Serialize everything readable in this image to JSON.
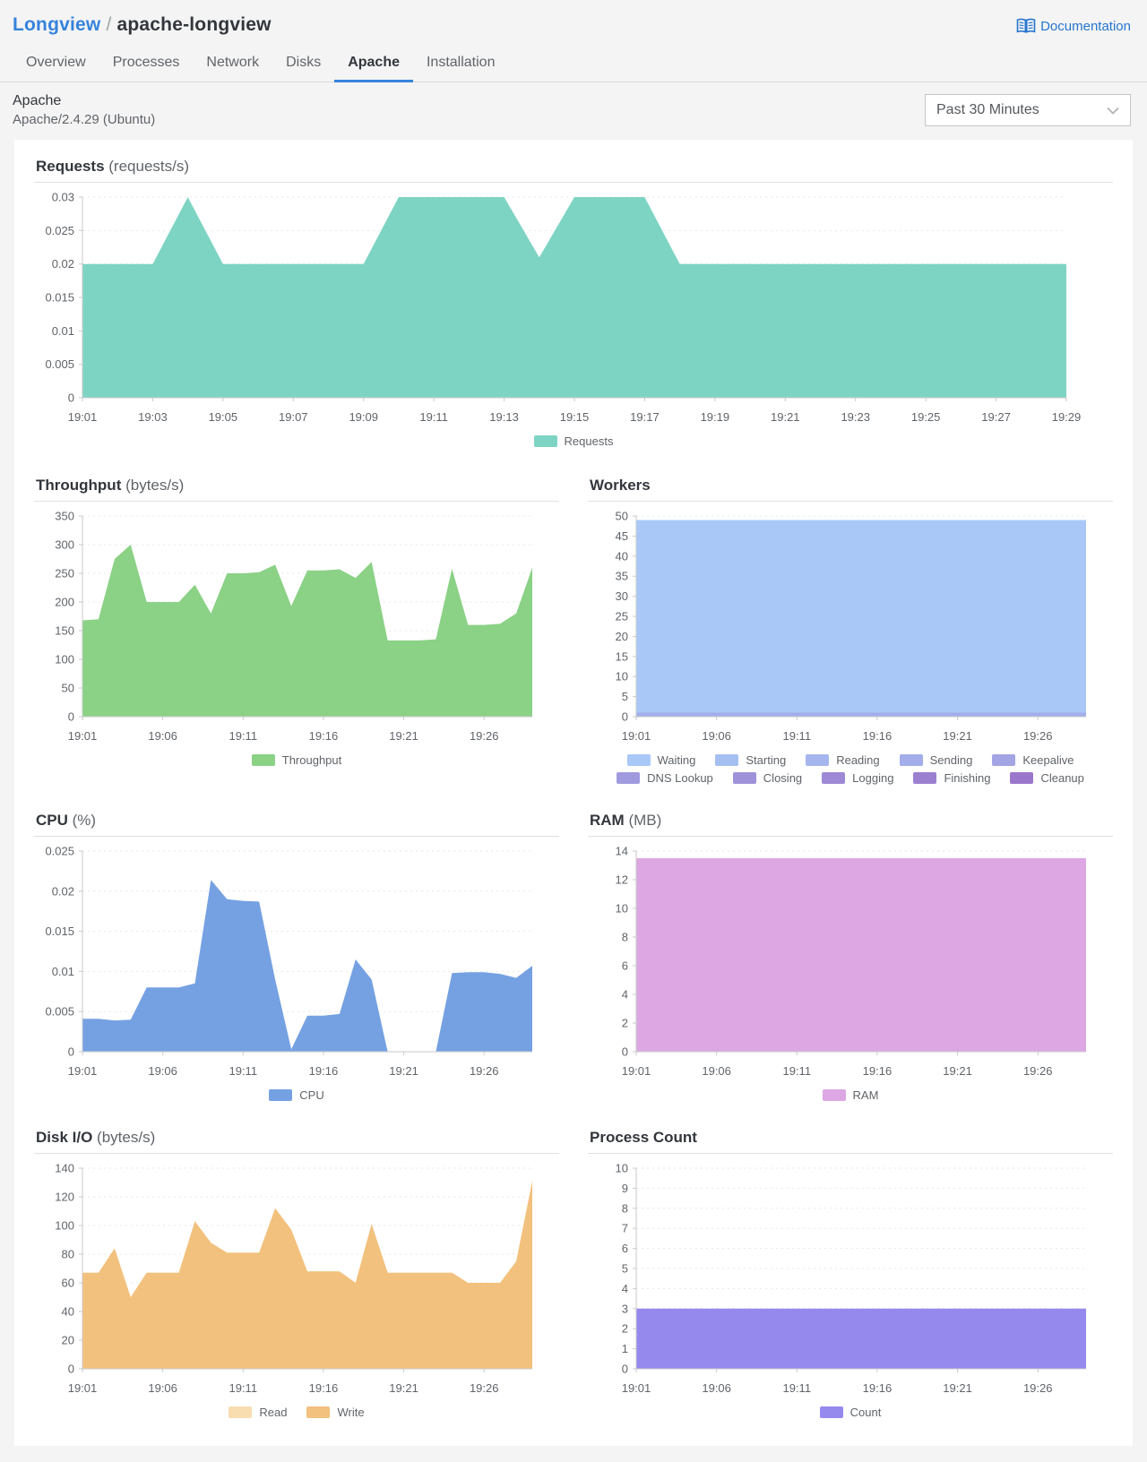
{
  "header": {
    "breadcrumb": {
      "parent": "Longview",
      "separator": "/",
      "current": "apache-longview"
    },
    "documentation": {
      "label": "Documentation"
    },
    "tabs": [
      {
        "label": "Overview",
        "active": false
      },
      {
        "label": "Processes",
        "active": false
      },
      {
        "label": "Network",
        "active": false
      },
      {
        "label": "Disks",
        "active": false
      },
      {
        "label": "Apache",
        "active": true
      },
      {
        "label": "Installation",
        "active": false
      }
    ]
  },
  "subheader": {
    "title": "Apache",
    "subtitle": "Apache/2.4.29 (Ubuntu)",
    "time_range": {
      "value": "Past 30 Minutes"
    }
  },
  "colors": {
    "accent_blue": "#3683dc",
    "requests_teal": "#7ed4c3",
    "throughput_green": "#8bd186",
    "cpu_blue": "#75a1e2",
    "ram_orchid": "#dca7e2",
    "disk_orange": "#f2c17d",
    "process_purple": "#9589ee"
  },
  "chart_data": [
    {
      "type": "area",
      "layout": "full",
      "title": "Requests",
      "unit": "(requests/s)",
      "x_start": "19:01",
      "x_end": "19:29",
      "ylim": [
        0,
        0.03
      ],
      "yticks": [
        0,
        0.005,
        0.01,
        0.015,
        0.02,
        0.025,
        0.03
      ],
      "xticks": [
        {
          "m": 1,
          "label": "19:01"
        },
        {
          "m": 3,
          "label": "19:03"
        },
        {
          "m": 5,
          "label": "19:05"
        },
        {
          "m": 7,
          "label": "19:07"
        },
        {
          "m": 9,
          "label": "19:09"
        },
        {
          "m": 11,
          "label": "19:11"
        },
        {
          "m": 13,
          "label": "19:13"
        },
        {
          "m": 15,
          "label": "19:15"
        },
        {
          "m": 17,
          "label": "19:17"
        },
        {
          "m": 19,
          "label": "19:19"
        },
        {
          "m": 21,
          "label": "19:21"
        },
        {
          "m": 23,
          "label": "19:23"
        },
        {
          "m": 25,
          "label": "19:25"
        },
        {
          "m": 27,
          "label": "19:27"
        },
        {
          "m": 29,
          "label": "19:29"
        }
      ],
      "series": [
        {
          "name": "Requests",
          "color": "#7ed4c3",
          "values": [
            0.02,
            0.02,
            0.02,
            0.03,
            0.02,
            0.02,
            0.02,
            0.02,
            0.02,
            0.03,
            0.03,
            0.03,
            0.03,
            0.021,
            0.03,
            0.03,
            0.03,
            0.02,
            0.02,
            0.02,
            0.02,
            0.02,
            0.02,
            0.02,
            0.02,
            0.02,
            0.02,
            0.02,
            0.02
          ]
        }
      ],
      "legend": [
        {
          "label": "Requests",
          "color": "#7ed4c3"
        }
      ]
    },
    {
      "type": "area",
      "layout": "half",
      "title": "Throughput",
      "unit": "(bytes/s)",
      "x_start": "19:01",
      "x_end": "19:29",
      "ylim": [
        0,
        350
      ],
      "yticks": [
        0,
        50,
        100,
        150,
        200,
        250,
        300,
        350
      ],
      "xticks": [
        {
          "m": 1,
          "label": "19:01"
        },
        {
          "m": 6,
          "label": "19:06"
        },
        {
          "m": 11,
          "label": "19:11"
        },
        {
          "m": 16,
          "label": "19:16"
        },
        {
          "m": 21,
          "label": "19:21"
        },
        {
          "m": 26,
          "label": "19:26"
        }
      ],
      "series": [
        {
          "name": "Throughput",
          "color": "#8bd186",
          "values": [
            168,
            170,
            275,
            300,
            200,
            200,
            200,
            230,
            180,
            250,
            250,
            252,
            265,
            193,
            255,
            255,
            257,
            242,
            270,
            133,
            133,
            133,
            135,
            258,
            160,
            160,
            162,
            180,
            260
          ]
        }
      ],
      "legend": [
        {
          "label": "Throughput",
          "color": "#8bd186"
        }
      ]
    },
    {
      "type": "area",
      "layout": "half",
      "title": "Workers",
      "x_start": "19:01",
      "x_end": "19:29",
      "ylim": [
        0,
        50
      ],
      "yticks": [
        0,
        5,
        10,
        15,
        20,
        25,
        30,
        35,
        40,
        45,
        50
      ],
      "xticks": [
        {
          "m": 1,
          "label": "19:01"
        },
        {
          "m": 6,
          "label": "19:06"
        },
        {
          "m": 11,
          "label": "19:11"
        },
        {
          "m": 16,
          "label": "19:16"
        },
        {
          "m": 21,
          "label": "19:21"
        },
        {
          "m": 26,
          "label": "19:26"
        }
      ],
      "series": [
        {
          "name": "Waiting",
          "color": "#a9c8f8",
          "values": [
            49,
            49,
            49,
            49,
            49,
            49,
            49,
            49,
            49,
            49,
            49,
            49,
            49,
            49,
            49,
            49,
            49,
            49,
            49,
            49,
            49,
            49,
            49,
            49,
            49,
            49,
            49,
            49,
            49
          ]
        },
        {
          "name": "Sending",
          "color": "#a3aeea",
          "values": [
            1,
            1,
            1,
            1,
            1,
            1,
            1,
            1,
            1,
            1,
            1,
            1,
            1,
            1,
            1,
            1,
            1,
            1,
            1,
            1,
            1,
            1,
            1,
            1,
            1,
            1,
            1,
            1,
            1
          ]
        }
      ],
      "legend": [
        {
          "label": "Waiting",
          "color": "#a8c8f8"
        },
        {
          "label": "Starting",
          "color": "#a6bff3"
        },
        {
          "label": "Reading",
          "color": "#a5b6ee"
        },
        {
          "label": "Sending",
          "color": "#a3ade9"
        },
        {
          "label": "Keepalive",
          "color": "#a2a4e4"
        },
        {
          "label": "DNS Lookup",
          "color": "#a09bdf"
        },
        {
          "label": "Closing",
          "color": "#9f92da"
        },
        {
          "label": "Logging",
          "color": "#9d89d5"
        },
        {
          "label": "Finishing",
          "color": "#9c80d0"
        },
        {
          "label": "Cleanup",
          "color": "#9a77cb"
        }
      ]
    },
    {
      "type": "area",
      "layout": "half",
      "title": "CPU",
      "unit": "(%)",
      "x_start": "19:01",
      "x_end": "19:29",
      "ylim": [
        0,
        0.025
      ],
      "yticks": [
        0,
        0.005,
        0.01,
        0.015,
        0.02,
        0.025
      ],
      "xticks": [
        {
          "m": 1,
          "label": "19:01"
        },
        {
          "m": 6,
          "label": "19:06"
        },
        {
          "m": 11,
          "label": "19:11"
        },
        {
          "m": 16,
          "label": "19:16"
        },
        {
          "m": 21,
          "label": "19:21"
        },
        {
          "m": 26,
          "label": "19:26"
        }
      ],
      "series": [
        {
          "name": "CPU",
          "color": "#75a1e2",
          "values": [
            0.0041,
            0.0041,
            0.0039,
            0.004,
            0.008,
            0.008,
            0.008,
            0.0085,
            0.0214,
            0.019,
            0.0188,
            0.0187,
            0.009,
            0.0003,
            0.0045,
            0.0045,
            0.0047,
            0.0115,
            0.009,
            0,
            0,
            0,
            0,
            0.0098,
            0.0099,
            0.0099,
            0.0097,
            0.0092,
            0.0107
          ]
        }
      ],
      "legend": [
        {
          "label": "CPU",
          "color": "#75a1e2"
        }
      ]
    },
    {
      "type": "area",
      "layout": "half",
      "title": "RAM",
      "unit": "(MB)",
      "x_start": "19:01",
      "x_end": "19:29",
      "ylim": [
        0,
        14
      ],
      "yticks": [
        0,
        2,
        4,
        6,
        8,
        10,
        12,
        14
      ],
      "xticks": [
        {
          "m": 1,
          "label": "19:01"
        },
        {
          "m": 6,
          "label": "19:06"
        },
        {
          "m": 11,
          "label": "19:11"
        },
        {
          "m": 16,
          "label": "19:16"
        },
        {
          "m": 21,
          "label": "19:21"
        },
        {
          "m": 26,
          "label": "19:26"
        }
      ],
      "series": [
        {
          "name": "RAM",
          "color": "#dca7e2",
          "values": [
            13.5,
            13.5,
            13.5,
            13.5,
            13.5,
            13.5,
            13.5,
            13.5,
            13.5,
            13.5,
            13.5,
            13.5,
            13.5,
            13.5,
            13.5,
            13.5,
            13.5,
            13.5,
            13.5,
            13.5,
            13.5,
            13.5,
            13.5,
            13.5,
            13.5,
            13.5,
            13.5,
            13.5,
            13.5
          ]
        }
      ],
      "legend": [
        {
          "label": "RAM",
          "color": "#dca7e2"
        }
      ]
    },
    {
      "type": "area",
      "layout": "half",
      "title": "Disk I/O",
      "unit": "(bytes/s)",
      "x_start": "19:01",
      "x_end": "19:29",
      "ylim": [
        0,
        140
      ],
      "yticks": [
        0,
        20,
        40,
        60,
        80,
        100,
        120,
        140
      ],
      "xticks": [
        {
          "m": 1,
          "label": "19:01"
        },
        {
          "m": 6,
          "label": "19:06"
        },
        {
          "m": 11,
          "label": "19:11"
        },
        {
          "m": 16,
          "label": "19:16"
        },
        {
          "m": 21,
          "label": "19:21"
        },
        {
          "m": 26,
          "label": "19:26"
        }
      ],
      "series": [
        {
          "name": "Read",
          "color": "#f7ddb0",
          "values": [
            67,
            67,
            84,
            50,
            67,
            67,
            67,
            103,
            88,
            81,
            81,
            81,
            112,
            97,
            68,
            68,
            68,
            60,
            101,
            67,
            67,
            67,
            67,
            67,
            60,
            60,
            60,
            75,
            131
          ]
        },
        {
          "name": "Write",
          "color": "#f2c17d",
          "values": [
            67,
            67,
            84,
            50,
            67,
            67,
            67,
            103,
            88,
            81,
            81,
            81,
            112,
            97,
            68,
            68,
            68,
            60,
            101,
            67,
            67,
            67,
            67,
            67,
            60,
            60,
            60,
            75,
            131
          ]
        }
      ],
      "legend": [
        {
          "label": "Read",
          "color": "#f7ddb0"
        },
        {
          "label": "Write",
          "color": "#f2c17d"
        }
      ]
    },
    {
      "type": "area",
      "layout": "half",
      "title": "Process Count",
      "x_start": "19:01",
      "x_end": "19:29",
      "ylim": [
        0,
        10
      ],
      "yticks": [
        0,
        1,
        2,
        3,
        4,
        5,
        6,
        7,
        8,
        9,
        10
      ],
      "xticks": [
        {
          "m": 1,
          "label": "19:01"
        },
        {
          "m": 6,
          "label": "19:06"
        },
        {
          "m": 11,
          "label": "19:11"
        },
        {
          "m": 16,
          "label": "19:16"
        },
        {
          "m": 21,
          "label": "19:21"
        },
        {
          "m": 26,
          "label": "19:26"
        }
      ],
      "series": [
        {
          "name": "Count",
          "color": "#9589ee",
          "values": [
            3,
            3,
            3,
            3,
            3,
            3,
            3,
            3,
            3,
            3,
            3,
            3,
            3,
            3,
            3,
            3,
            3,
            3,
            3,
            3,
            3,
            3,
            3,
            3,
            3,
            3,
            3,
            3,
            3
          ]
        }
      ],
      "legend": [
        {
          "label": "Count",
          "color": "#9589ee"
        }
      ]
    }
  ]
}
